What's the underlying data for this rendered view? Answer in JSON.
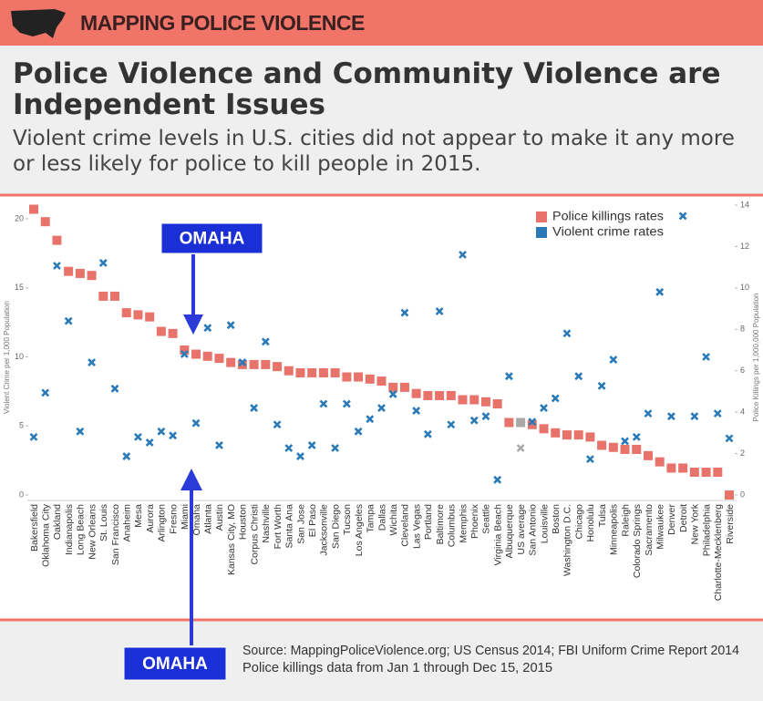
{
  "header": {
    "brand": "MAPPING POLICE VIOLENCE"
  },
  "chart_data": {
    "type": "scatter",
    "title": "Police Violence and Community Violence are Independent Issues",
    "subtitle": "Violent crime levels in U.S. cities did not appear to make it any more or less likely for police to kill people in 2015.",
    "ylabel": "Violent Crime per 1,000 Population",
    "y2label": "Police Killings per 1,000,000 Population",
    "categories": [
      "Bakersfield",
      "Oklahoma City",
      "Oakland",
      "Indianapolis",
      "Long Beach",
      "New Orleans",
      "St. Louis",
      "San Francisco",
      "Anaheim",
      "Mesa",
      "Aurora",
      "Arlington",
      "Fresno",
      "Miami",
      "Omaha",
      "Atlanta",
      "Austin",
      "Kansas City, MO",
      "Houston",
      "Corpus Christi",
      "Nashville",
      "Fort Worth",
      "Santa Ana",
      "San Jose",
      "El Paso",
      "Jacksonville",
      "San Diego",
      "Tucson",
      "Los Angeles",
      "Tampa",
      "Dallas",
      "Wichita",
      "Cleveland",
      "Las Vegas",
      "Portland",
      "Baltimore",
      "Columbus",
      "Memphis",
      "Phoenix",
      "Seattle",
      "Virginia Beach",
      "Albuquerque",
      "US average",
      "San Antonio",
      "Louisville",
      "Boston",
      "Washington D.C.",
      "Chicago",
      "Honolulu",
      "Tulsa",
      "Minneapolis",
      "Raleigh",
      "Colorado Springs",
      "Sacramento",
      "Milwaukee",
      "Denver",
      "Detroit",
      "New York",
      "Philadelphia",
      "Charlotte-Mecklenberg",
      "Riverside"
    ],
    "series": [
      {
        "name": "Police killings rates",
        "color": "#e8736b",
        "marker": "square",
        "axis": "y2",
        "values": [
          13.8,
          13.2,
          12.3,
          10.8,
          10.7,
          10.6,
          9.6,
          9.6,
          8.8,
          8.7,
          8.6,
          7.9,
          7.8,
          7.0,
          6.8,
          6.7,
          6.6,
          6.4,
          6.3,
          6.3,
          6.3,
          6.2,
          6.0,
          5.9,
          5.9,
          5.9,
          5.9,
          5.7,
          5.7,
          5.6,
          5.5,
          5.2,
          5.2,
          4.9,
          4.8,
          4.8,
          4.8,
          4.6,
          4.6,
          4.5,
          4.4,
          3.5,
          3.5,
          3.4,
          3.2,
          3.0,
          2.9,
          2.9,
          2.8,
          2.4,
          2.3,
          2.2,
          2.2,
          1.9,
          1.6,
          1.3,
          1.3,
          1.1,
          1.1,
          1.1,
          0
        ]
      },
      {
        "name": "Violent crime rates",
        "color": "#2a7ab8",
        "marker": "x",
        "axis": "y",
        "values": [
          4.2,
          7.4,
          16.6,
          12.6,
          4.6,
          9.6,
          16.8,
          7.7,
          2.8,
          4.2,
          3.8,
          4.6,
          4.3,
          10.2,
          5.2,
          12.1,
          3.6,
          12.3,
          9.6,
          6.3,
          11.1,
          5.1,
          3.4,
          2.8,
          3.6,
          6.6,
          3.4,
          6.6,
          4.6,
          5.5,
          6.3,
          7.3,
          13.2,
          6.1,
          4.4,
          13.3,
          5.1,
          17.4,
          5.4,
          5.7,
          1.1,
          8.6,
          3.4,
          5.3,
          6.3,
          7.0,
          11.7,
          8.6,
          2.6,
          7.9,
          9.8,
          3.9,
          4.2,
          5.9,
          14.7,
          5.7,
          20.2,
          5.7,
          10.0,
          5.9,
          4.1
        ]
      }
    ],
    "highlight": "US average",
    "highlight_color": "#a9a9a9",
    "ylim": [
      0,
      20
    ],
    "yticks": [
      0,
      5,
      10,
      15,
      20
    ],
    "y2lim": [
      0,
      14
    ],
    "y2ticks": [
      0,
      2,
      4,
      6,
      8,
      10,
      12,
      14
    ],
    "annotations": [
      "OMAHA",
      "OMAHA"
    ],
    "source": [
      "Source: MappingPoliceViolence.org; US Census 2014; FBI Uniform Crime Report 2014",
      "Police killings data from Jan 1 through Dec 15, 2015"
    ]
  }
}
